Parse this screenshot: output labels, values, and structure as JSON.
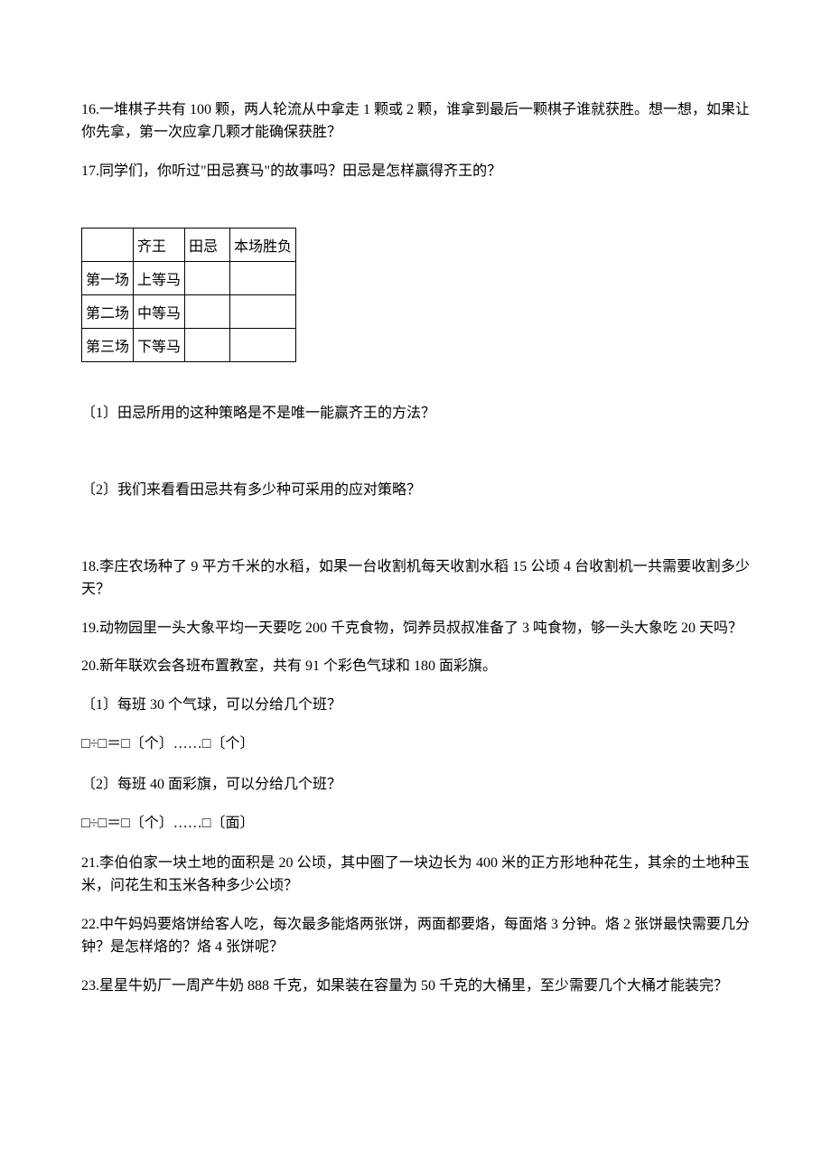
{
  "questions": {
    "q16": "16.一堆棋子共有 100 颗，两人轮流从中拿走 1 颗或 2 颗，谁拿到最后一颗棋子谁就获胜。想一想，如果让你先拿，第一次应拿几颗才能确保获胜？",
    "q17": "17.同学们，你听过\"田忌赛马\"的故事吗？田忌是怎样赢得齐王的？",
    "q17_sub1": "〔1〕田忌所用的这种策略是不是唯一能赢齐王的方法？",
    "q17_sub2": "〔2〕我们来看看田忌共有多少种可采用的应对策略？",
    "q18": "18.李庄农场种了 9 平方千米的水稻，如果一台收割机每天收割水稻 15 公顷 4 台收割机一共需要收割多少天？",
    "q19": "19.动物园里一头大象平均一天要吃 200 千克食物，饲养员叔叔准备了 3 吨食物，够一头大象吃 20 天吗？",
    "q20": "20.新年联欢会各班布置教室，共有 91 个彩色气球和 180 面彩旗。",
    "q20_sub1": "〔1〕每班 30 个气球，可以分给几个班？",
    "q20_formula1": "□÷□＝□〔个〕……□〔个〕",
    "q20_sub2": "〔2〕每班 40 面彩旗，可以分给几个班？",
    "q20_formula2": "□÷□＝□〔个〕……□〔面〕",
    "q21": "21.李伯伯家一块土地的面积是 20 公顷，其中圈了一块边长为 400 米的正方形地种花生，其余的土地种玉米，问花生和玉米各种多少公顷？",
    "q22": "22.中午妈妈要烙饼给客人吃，每次最多能烙两张饼，两面都要烙，每面烙 3 分钟。烙 2 张饼最快需要几分钟？是怎样烙的？烙 4 张饼呢？",
    "q23": "23.星星牛奶厂一周产牛奶 888 千克，如果装在容量为 50 千克的大桶里，至少需要几个大桶才能装完？"
  },
  "table": {
    "headers": {
      "col1": "",
      "col2": "齐王",
      "col3": "田忌",
      "col4": "本场胜负"
    },
    "rows": [
      {
        "round": "第一场",
        "qiwang": "上等马",
        "tianji": "",
        "result": ""
      },
      {
        "round": "第二场",
        "qiwang": "中等马",
        "tianji": "",
        "result": ""
      },
      {
        "round": "第三场",
        "qiwang": "下等马",
        "tianji": "",
        "result": ""
      }
    ]
  }
}
